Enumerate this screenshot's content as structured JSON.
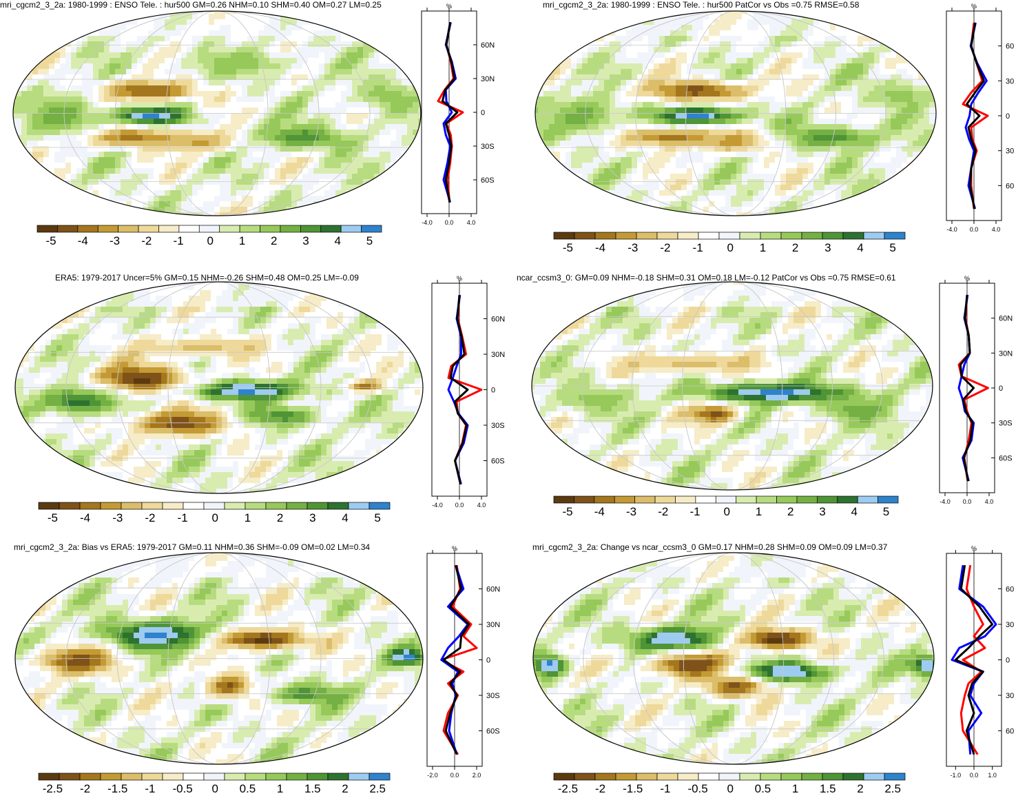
{
  "colors": {
    "palette": [
      "#5b3a10",
      "#7e5218",
      "#a4761e",
      "#c49a35",
      "#dbbd6a",
      "#eed99b",
      "#f6ecc8",
      "#ffffff",
      "#f1f5fb",
      "#d9ecb0",
      "#b7dc7f",
      "#96c95a",
      "#74b043",
      "#4f9436",
      "#2e7230",
      "#9ecbf0",
      "#2f82cc"
    ],
    "obs_line": "#ff0000",
    "model_line": "#0000ff",
    "diff_line": "#000000"
  },
  "panels": [
    {
      "title": "mri_cgcm2_3_2a: 1980-1999 : ENSO Tele. : hur500 GM=0.26 NHM=0.10 SHM=0.40 OM=0.27 LM=0.25",
      "unit": "%",
      "lat_labels": [
        "60N",
        "30N",
        "0",
        "30S",
        "60S"
      ],
      "x_ticks": [
        "-4.0",
        "0.0",
        "4.0"
      ],
      "colorbar_labels": [
        "-5",
        "-4",
        "-3",
        "-2",
        "-1",
        "0",
        "1",
        "2",
        "3",
        "4",
        "5"
      ]
    },
    {
      "title": "mri_cgcm2_3_2a: 1980-1999 : ENSO Tele. : hur500 PatCor vs Obs =0.75 RMSE=0.58",
      "unit": "%",
      "lat_labels": [
        "60",
        "30",
        "0",
        "30",
        "60"
      ],
      "x_ticks": [
        "-4.0",
        "0.0",
        "4.0"
      ],
      "colorbar_labels": [
        "-5",
        "-4",
        "-3",
        "-2",
        "-1",
        "0",
        "1",
        "2",
        "3",
        "4",
        "5"
      ]
    },
    {
      "title": "ERA5: 1979-2017 Uncer=5% GM=0.15 NHM=-0.26 SHM=0.48 OM=0.25 LM=-0.09",
      "unit": "%",
      "lat_labels": [
        "60N",
        "30N",
        "0",
        "30S",
        "60S"
      ],
      "x_ticks": [
        "-4.0",
        "0.0",
        "4.0"
      ],
      "colorbar_labels": [
        "-5",
        "-4",
        "-3",
        "-2",
        "-1",
        "0",
        "1",
        "2",
        "3",
        "4",
        "5"
      ]
    },
    {
      "title": "ncar_ccsm3_0: GM=0.09 NHM=-0.18 SHM=0.31 OM=0.18 LM=-0.12 PatCor vs Obs =0.75 RMSE=0.61",
      "unit": "%",
      "lat_labels": [
        "60N",
        "30N",
        "0",
        "30S",
        "60S"
      ],
      "x_ticks": [
        "-4.0",
        "0.0",
        "4.0"
      ],
      "colorbar_labels": [
        "-5",
        "-4",
        "-3",
        "-2",
        "-1",
        "0",
        "1",
        "2",
        "3",
        "4",
        "5"
      ]
    },
    {
      "title": "mri_cgcm2_3_2a: Bias vs ERA5: 1979-2017 GM=0.11 NHM=0.36 SHM=-0.09 OM=0.02 LM=0.34",
      "unit": "%",
      "lat_labels": [
        "60N",
        "30N",
        "0",
        "30S",
        "60S"
      ],
      "x_ticks": [
        "-2.0",
        "0.0",
        "2.0"
      ],
      "colorbar_labels": [
        "-2.5",
        "-2",
        "-1.5",
        "-1",
        "-0.5",
        "0",
        "0.5",
        "1",
        "1.5",
        "2",
        "2.5"
      ]
    },
    {
      "title": "mri_cgcm2_3_2a: Change vs ncar_ccsm3_0 GM=0.17 NHM=0.28 SHM=0.09 OM=0.09 LM=0.37",
      "unit": "%",
      "lat_labels": [
        "60",
        "30",
        "0",
        "30",
        "60"
      ],
      "x_ticks": [
        "-1.0",
        "0.0",
        "1.0"
      ],
      "colorbar_labels": [
        "-2.5",
        "-2",
        "-1.5",
        "-1",
        "-0.5",
        "0",
        "0.5",
        "1",
        "1.5",
        "2",
        "2.5"
      ]
    }
  ],
  "chart_data": [
    {
      "type": "heatmap",
      "title": "mri_cgcm2_3_2a: 1980-1999 : ENSO Tele. : hur500 GM=0.26 NHM=0.10 SHM=0.40 OM=0.27 LM=0.25",
      "colorbar_range": [
        -5,
        5
      ],
      "zonal_mean": {
        "type": "line",
        "ylim": [
          -90,
          90
        ],
        "xlim": [
          -5,
          5
        ],
        "lat": [
          80,
          60,
          45,
          30,
          20,
          10,
          0,
          -10,
          -20,
          -30,
          -45,
          -60,
          -80
        ],
        "series": [
          {
            "values": [
              0.2,
              -0.5,
              0.3,
              0.8,
              -0.8,
              -2.0,
              2.5,
              -0.5,
              0.3,
              0.5,
              0.2,
              -0.3,
              0.1
            ]
          },
          {
            "values": [
              0.3,
              -0.6,
              0.5,
              1.2,
              -0.6,
              -0.5,
              0.5,
              -1.0,
              -0.6,
              0.2,
              -0.3,
              -1.0,
              0.2
            ]
          },
          {
            "values": [
              0.2,
              -0.5,
              0.4,
              1.0,
              -0.7,
              -1.2,
              1.5,
              -0.6,
              0.0,
              0.4,
              0.0,
              -0.6,
              0.1
            ]
          }
        ]
      }
    },
    {
      "type": "heatmap",
      "title": "mri_cgcm2_3_2a: 1980-1999 : ENSO Tele. : hur500 PatCor vs Obs =0.75 RMSE=0.58",
      "colorbar_range": [
        -5,
        5
      ],
      "zonal_mean": {
        "type": "line",
        "ylim": [
          -90,
          90
        ],
        "xlim": [
          -5,
          5
        ],
        "lat": [
          80,
          60,
          45,
          30,
          20,
          10,
          0,
          -10,
          -20,
          -30,
          -45,
          -60,
          -80
        ],
        "series": [
          {
            "values": [
              0.0,
              -0.5,
              0.5,
              1.5,
              -0.5,
              -2.0,
              2.5,
              -0.5,
              -0.3,
              0.5,
              -0.5,
              -0.5,
              0.0
            ]
          },
          {
            "values": [
              0.3,
              -0.6,
              0.6,
              2.3,
              0.8,
              -0.5,
              -0.8,
              -1.5,
              -0.9,
              0.0,
              -0.5,
              -1.0,
              0.2
            ]
          },
          {
            "values": [
              0.2,
              -0.5,
              0.5,
              1.8,
              0.2,
              -1.3,
              1.0,
              -1.0,
              -0.5,
              0.3,
              -0.5,
              -0.7,
              0.1
            ]
          }
        ]
      }
    },
    {
      "type": "heatmap",
      "title": "ERA5: 1979-2017 Uncer=5% GM=0.15 NHM=-0.26 SHM=0.48 OM=0.25 LM=-0.09",
      "colorbar_range": [
        -5,
        5
      ],
      "zonal_mean": {
        "type": "line",
        "ylim": [
          -90,
          90
        ],
        "xlim": [
          -5,
          5
        ],
        "lat": [
          80,
          60,
          45,
          30,
          20,
          10,
          0,
          -10,
          -20,
          -30,
          -45,
          -60,
          -80
        ],
        "series": [
          {
            "values": [
              0.0,
              -0.3,
              0.5,
              1.2,
              -1.5,
              -2.0,
              4.0,
              -0.5,
              -0.3,
              1.2,
              0.5,
              -0.8,
              0.2
            ]
          },
          {
            "values": [
              0.1,
              -0.5,
              0.3,
              0.3,
              -0.5,
              -1.2,
              -2.0,
              -1.0,
              -0.2,
              1.5,
              0.8,
              -0.8,
              0.3
            ]
          },
          {
            "values": [
              0.0,
              -0.4,
              0.4,
              0.9,
              -1.2,
              -1.6,
              1.5,
              -0.8,
              -0.3,
              1.3,
              0.6,
              -0.8,
              0.2
            ]
          }
        ]
      }
    },
    {
      "type": "heatmap",
      "title": "ncar_ccsm3_0: GM=0.09 NHM=-0.18 SHM=0.31 OM=0.18 LM=-0.12 PatCor vs Obs =0.75 RMSE=0.61",
      "colorbar_range": [
        -5,
        5
      ],
      "zonal_mean": {
        "type": "line",
        "ylim": [
          -90,
          90
        ],
        "xlim": [
          -5,
          5
        ],
        "lat": [
          80,
          60,
          45,
          30,
          20,
          10,
          0,
          -10,
          -20,
          -30,
          -45,
          -60,
          -80
        ],
        "series": [
          {
            "values": [
              0.0,
              -0.3,
              0.3,
              0.5,
              -1.5,
              -1.0,
              3.8,
              -0.5,
              0.0,
              0.8,
              0.3,
              -0.5,
              0.1
            ]
          },
          {
            "values": [
              0.1,
              -0.5,
              0.3,
              0.5,
              -0.5,
              -1.0,
              -1.5,
              -0.8,
              -0.4,
              1.2,
              0.8,
              -0.8,
              0.3
            ]
          },
          {
            "values": [
              0.0,
              -0.4,
              0.3,
              0.5,
              -1.2,
              -1.0,
              1.2,
              -0.7,
              -0.2,
              1.0,
              0.6,
              -0.6,
              0.2
            ]
          }
        ]
      }
    },
    {
      "type": "heatmap",
      "title": "mri_cgcm2_3_2a: Bias vs ERA5: 1979-2017 GM=0.11 NHM=0.36 SHM=-0.09 OM=0.02 LM=0.34",
      "colorbar_range": [
        -2.5,
        2.5
      ],
      "zonal_mean": {
        "type": "line",
        "ylim": [
          -90,
          90
        ],
        "xlim": [
          -2.5,
          2.5
        ],
        "lat": [
          80,
          60,
          45,
          30,
          20,
          10,
          0,
          -10,
          -20,
          -30,
          -45,
          -60,
          -80
        ],
        "series": [
          {
            "values": [
              0.2,
              0.5,
              -0.2,
              1.5,
              0.8,
              2.0,
              -1.2,
              0.8,
              -0.6,
              0.3,
              -0.6,
              -1.0,
              0.3
            ]
          },
          {
            "values": [
              0.1,
              0.8,
              -0.6,
              1.2,
              0.4,
              -0.6,
              -1.2,
              0.3,
              -0.2,
              0.1,
              -0.3,
              -0.5,
              0.2
            ]
          },
          {
            "values": [
              0.1,
              0.6,
              -0.4,
              1.3,
              0.6,
              0.5,
              -1.0,
              0.5,
              -0.4,
              0.2,
              -0.4,
              -0.8,
              0.2
            ]
          }
        ]
      }
    },
    {
      "type": "heatmap",
      "title": "mri_cgcm2_3_2a: Change vs ncar_ccsm3_0 GM=0.17 NHM=0.28 SHM=0.09 OM=0.09 LM=0.37",
      "colorbar_range": [
        -2.5,
        2.5
      ],
      "zonal_mean": {
        "type": "line",
        "ylim": [
          -90,
          90
        ],
        "xlim": [
          -1.5,
          1.5
        ],
        "lat": [
          80,
          60,
          45,
          30,
          20,
          10,
          0,
          -10,
          -20,
          -30,
          -45,
          -60,
          -80
        ],
        "series": [
          {
            "values": [
              -0.2,
              -0.4,
              0.0,
              0.5,
              0.0,
              0.6,
              -0.6,
              0.4,
              -0.3,
              -0.5,
              -0.7,
              -0.6,
              0.2
            ]
          },
          {
            "values": [
              -0.6,
              -0.8,
              0.5,
              1.2,
              0.6,
              -0.8,
              -1.2,
              0.5,
              0.0,
              -0.2,
              0.4,
              -0.3,
              -0.2
            ]
          },
          {
            "values": [
              -0.5,
              -0.7,
              0.3,
              1.0,
              0.3,
              -0.3,
              -1.0,
              0.5,
              -0.1,
              -0.3,
              0.0,
              -0.4,
              0.0
            ]
          }
        ]
      }
    }
  ]
}
